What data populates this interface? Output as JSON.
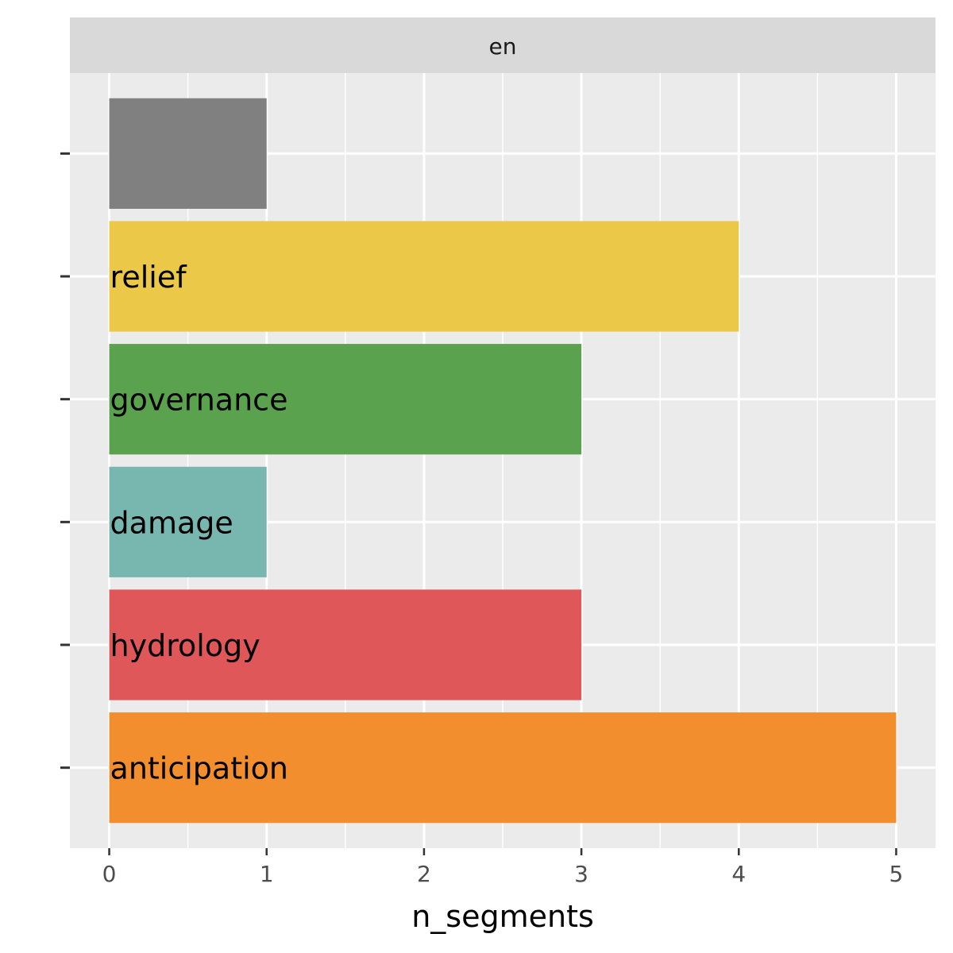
{
  "chart_data": {
    "type": "bar",
    "orientation": "horizontal",
    "facet": "en",
    "xlabel": "n_segments",
    "ylabel": "",
    "xlim": [
      -0.25,
      5.25
    ],
    "xticks": [
      0,
      1,
      2,
      3,
      4,
      5
    ],
    "grid": true,
    "categories": [
      "",
      "relief",
      "governance",
      "damage",
      "hydrology",
      "anticipation"
    ],
    "values": [
      1,
      4,
      3,
      1,
      3,
      5
    ],
    "colors": [
      "#808080",
      "#EBC848",
      "#5BA24F",
      "#78B6B0",
      "#E0575A",
      "#F28E2E"
    ]
  }
}
